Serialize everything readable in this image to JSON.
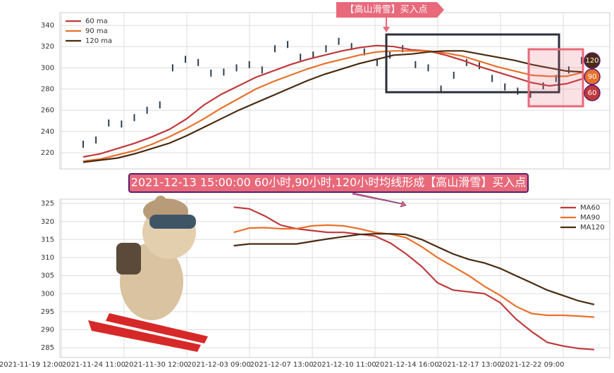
{
  "chart_data": [
    {
      "type": "line",
      "grid": true,
      "legend": "upper left",
      "ylim": [
        204.7,
        352
      ],
      "yticks": [
        220,
        240,
        260,
        280,
        300,
        320,
        340
      ],
      "candles": {
        "color": "#2c3e50",
        "values": [
          228,
          232,
          248,
          247,
          253,
          260,
          265,
          300,
          308,
          305,
          295,
          296,
          300,
          303,
          298,
          318,
          322,
          310,
          312,
          318,
          325,
          320,
          315,
          305,
          312,
          318,
          303,
          300,
          280,
          293,
          305,
          302,
          290,
          282,
          278,
          275,
          283,
          290,
          298,
          307
        ]
      },
      "series": [
        {
          "name": "60 ma",
          "color": "#c0393b",
          "values": [
            216,
            219,
            224,
            229,
            235,
            242,
            252,
            265,
            275,
            283,
            291,
            297,
            303,
            308,
            312,
            316,
            319,
            321,
            320,
            317,
            316,
            312,
            307,
            301,
            296,
            291,
            286,
            283,
            285,
            290
          ]
        },
        {
          "name": "90 ma",
          "color": "#e8712a",
          "values": [
            212,
            214,
            218,
            222,
            228,
            235,
            243,
            252,
            262,
            271,
            280,
            287,
            293,
            299,
            304,
            308,
            312,
            315,
            316,
            316,
            316,
            314,
            311,
            306,
            301,
            297,
            293,
            292,
            292,
            296
          ]
        },
        {
          "name": "120 ma",
          "color": "#4a2a10",
          "values": [
            211,
            213,
            215,
            219,
            224,
            229,
            236,
            244,
            252,
            260,
            267,
            274,
            281,
            288,
            294,
            299,
            304,
            308,
            312,
            313,
            315,
            316,
            316,
            313,
            310,
            307,
            303,
            300,
            297,
            296
          ]
        }
      ],
      "annotation": "【高山滑雪】买入点",
      "badges": [
        "120",
        "90",
        "60"
      ]
    },
    {
      "type": "line",
      "grid": true,
      "legend": "upper right",
      "title": "2021-12-13 15:00:00 60小时,90小时,120小时均线形成【高山滑雪】买入点",
      "ylim": [
        282.3,
        326.2
      ],
      "yticks": [
        285,
        290,
        295,
        300,
        305,
        310,
        315,
        320,
        325
      ],
      "categories": [
        "2021-11-19 12:00",
        null,
        null,
        null,
        "2021-11-24 11:00",
        null,
        null,
        null,
        "2021-11-30 12:00",
        null,
        null,
        null,
        "2021-12-03 09:00",
        null,
        null,
        null,
        "2021-12-07 13:00",
        null,
        null,
        null,
        "2021-12-10 11:00",
        null,
        null,
        null,
        "2021-12-14 16:00",
        null,
        null,
        null,
        "2021-12-17 13:00",
        null,
        null,
        null,
        "2021-12-22 09:00",
        null,
        null
      ],
      "series": [
        {
          "name": "MA60",
          "color": "#c0393b",
          "values": [
            null,
            null,
            null,
            null,
            null,
            null,
            null,
            null,
            null,
            null,
            null,
            324,
            323.5,
            321.5,
            319,
            318,
            317.5,
            317,
            317,
            316.5,
            316,
            314,
            311,
            307.5,
            303,
            301,
            300.5,
            300,
            297.5,
            293,
            289.5,
            286.5,
            285.5,
            284.8,
            284.5
          ]
        },
        {
          "name": "MA90",
          "color": "#e8712a",
          "values": [
            null,
            null,
            null,
            null,
            null,
            null,
            null,
            null,
            null,
            null,
            null,
            317,
            318.2,
            318.3,
            318,
            318,
            318.8,
            319,
            318.8,
            318,
            317,
            316.5,
            315.5,
            313,
            310,
            307.5,
            305,
            302,
            299.5,
            296.5,
            294.5,
            294,
            294,
            293.8,
            293.5
          ]
        },
        {
          "name": "MA120",
          "color": "#4a2a10",
          "values": [
            null,
            null,
            null,
            null,
            null,
            null,
            null,
            null,
            null,
            null,
            null,
            313.3,
            313.8,
            313.8,
            313.8,
            313.8,
            314.5,
            315.2,
            315.8,
            316.4,
            316.6,
            316.6,
            316.4,
            315,
            313,
            311,
            309.5,
            308.5,
            307,
            305,
            303,
            301,
            299.5,
            298,
            297
          ]
        }
      ]
    }
  ]
}
